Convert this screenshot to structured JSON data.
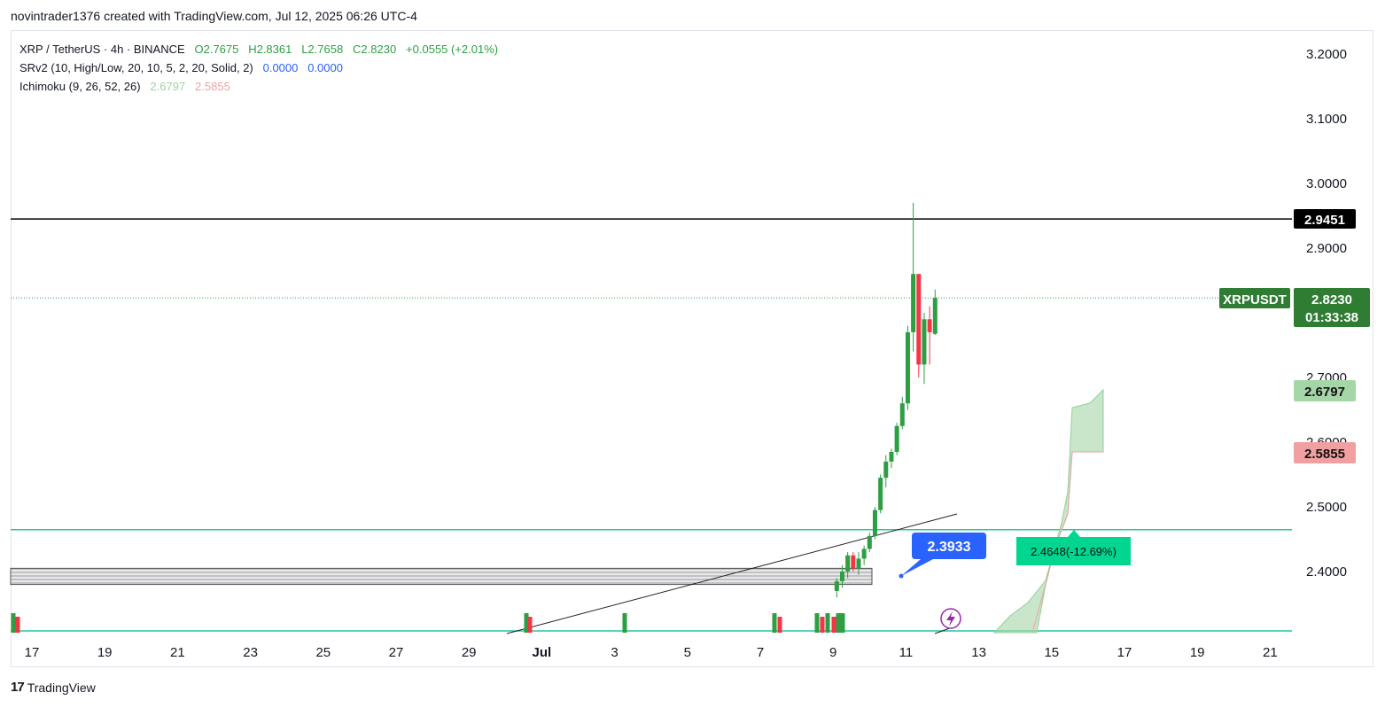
{
  "header": {
    "text": "novintrader1376 created with TradingView.com, Jul 12, 2025 06:26 UTC-4"
  },
  "legend": {
    "symbol": "XRP / TetherUS · 4h · BINANCE",
    "open": "O2.7675",
    "high": "H2.8361",
    "low": "L2.7658",
    "close": "C2.8230",
    "change": "+0.0555 (+2.01%)",
    "srv2_label": "SRv2 (10, High/Low, 20, 10, 5, 2, 20, Solid, 2)",
    "srv2_v1": "0.0000",
    "srv2_v2": "0.0000",
    "ichimoku_label": "Ichimoku (9, 26, 52, 26)",
    "ichimoku_v1": "2.6797",
    "ichimoku_v2": "2.5855"
  },
  "footer": {
    "brand": "TradingView",
    "logo_text": "17"
  },
  "colors": {
    "up": "#2e9e42",
    "down": "#f23645",
    "accent_green": "#22c7a0",
    "cloud": "#a5d6a7",
    "blue_tag": "#2962ff"
  },
  "chart_data": {
    "type": "candlestick",
    "symbol": "XRPUSDT",
    "y_range": [
      2.31,
      3.24
    ],
    "y_ticks": [
      "3.2000",
      "3.1000",
      "3.0000",
      "2.9000",
      "2.7000",
      "2.6000",
      "2.5000",
      "2.4000"
    ],
    "x_ticks": [
      "17",
      "19",
      "21",
      "23",
      "25",
      "27",
      "29",
      "Jul",
      "3",
      "5",
      "7",
      "9",
      "11",
      "13",
      "15",
      "17",
      "19",
      "21"
    ],
    "price_tags": {
      "resistance": "2.9451",
      "last_symbol": "XRPUSDT",
      "last_price": "2.8230",
      "countdown": "01:33:38",
      "ichimoku_a": "2.6797",
      "ichimoku_b": "2.5855"
    },
    "annotations": {
      "blue_callout": "2.3933",
      "green_callout": "2.4648(-12.69%)"
    },
    "levels": {
      "resistance": 2.9451,
      "support_upper": 2.4648,
      "support_lower": 2.31,
      "zone": [
        2.38,
        2.405
      ]
    },
    "candles": [
      {
        "x": 9.1,
        "o": 2.37,
        "h": 2.39,
        "l": 2.36,
        "c": 2.385
      },
      {
        "x": 9.25,
        "o": 2.385,
        "h": 2.41,
        "l": 2.375,
        "c": 2.4
      },
      {
        "x": 9.4,
        "o": 2.4,
        "h": 2.43,
        "l": 2.39,
        "c": 2.425
      },
      {
        "x": 9.55,
        "o": 2.425,
        "h": 2.43,
        "l": 2.4,
        "c": 2.405
      },
      {
        "x": 9.7,
        "o": 2.405,
        "h": 2.43,
        "l": 2.395,
        "c": 2.42
      },
      {
        "x": 9.85,
        "o": 2.42,
        "h": 2.44,
        "l": 2.41,
        "c": 2.435
      },
      {
        "x": 10.0,
        "o": 2.435,
        "h": 2.46,
        "l": 2.43,
        "c": 2.455
      },
      {
        "x": 10.15,
        "o": 2.455,
        "h": 2.5,
        "l": 2.45,
        "c": 2.495
      },
      {
        "x": 10.3,
        "o": 2.495,
        "h": 2.55,
        "l": 2.49,
        "c": 2.545
      },
      {
        "x": 10.45,
        "o": 2.545,
        "h": 2.58,
        "l": 2.53,
        "c": 2.57
      },
      {
        "x": 10.6,
        "o": 2.57,
        "h": 2.59,
        "l": 2.56,
        "c": 2.585
      },
      {
        "x": 10.75,
        "o": 2.585,
        "h": 2.63,
        "l": 2.58,
        "c": 2.625
      },
      {
        "x": 10.9,
        "o": 2.625,
        "h": 2.67,
        "l": 2.62,
        "c": 2.66
      },
      {
        "x": 11.05,
        "o": 2.66,
        "h": 2.78,
        "l": 2.65,
        "c": 2.77
      },
      {
        "x": 11.2,
        "o": 2.77,
        "h": 2.97,
        "l": 2.74,
        "c": 2.86
      },
      {
        "x": 11.35,
        "o": 2.86,
        "h": 2.86,
        "l": 2.7,
        "c": 2.72
      },
      {
        "x": 11.5,
        "o": 2.72,
        "h": 2.8,
        "l": 2.69,
        "c": 2.79
      },
      {
        "x": 11.65,
        "o": 2.79,
        "h": 2.81,
        "l": 2.72,
        "c": 2.77
      },
      {
        "x": 11.8,
        "o": 2.7675,
        "h": 2.8361,
        "l": 2.7658,
        "c": 2.823
      }
    ]
  }
}
